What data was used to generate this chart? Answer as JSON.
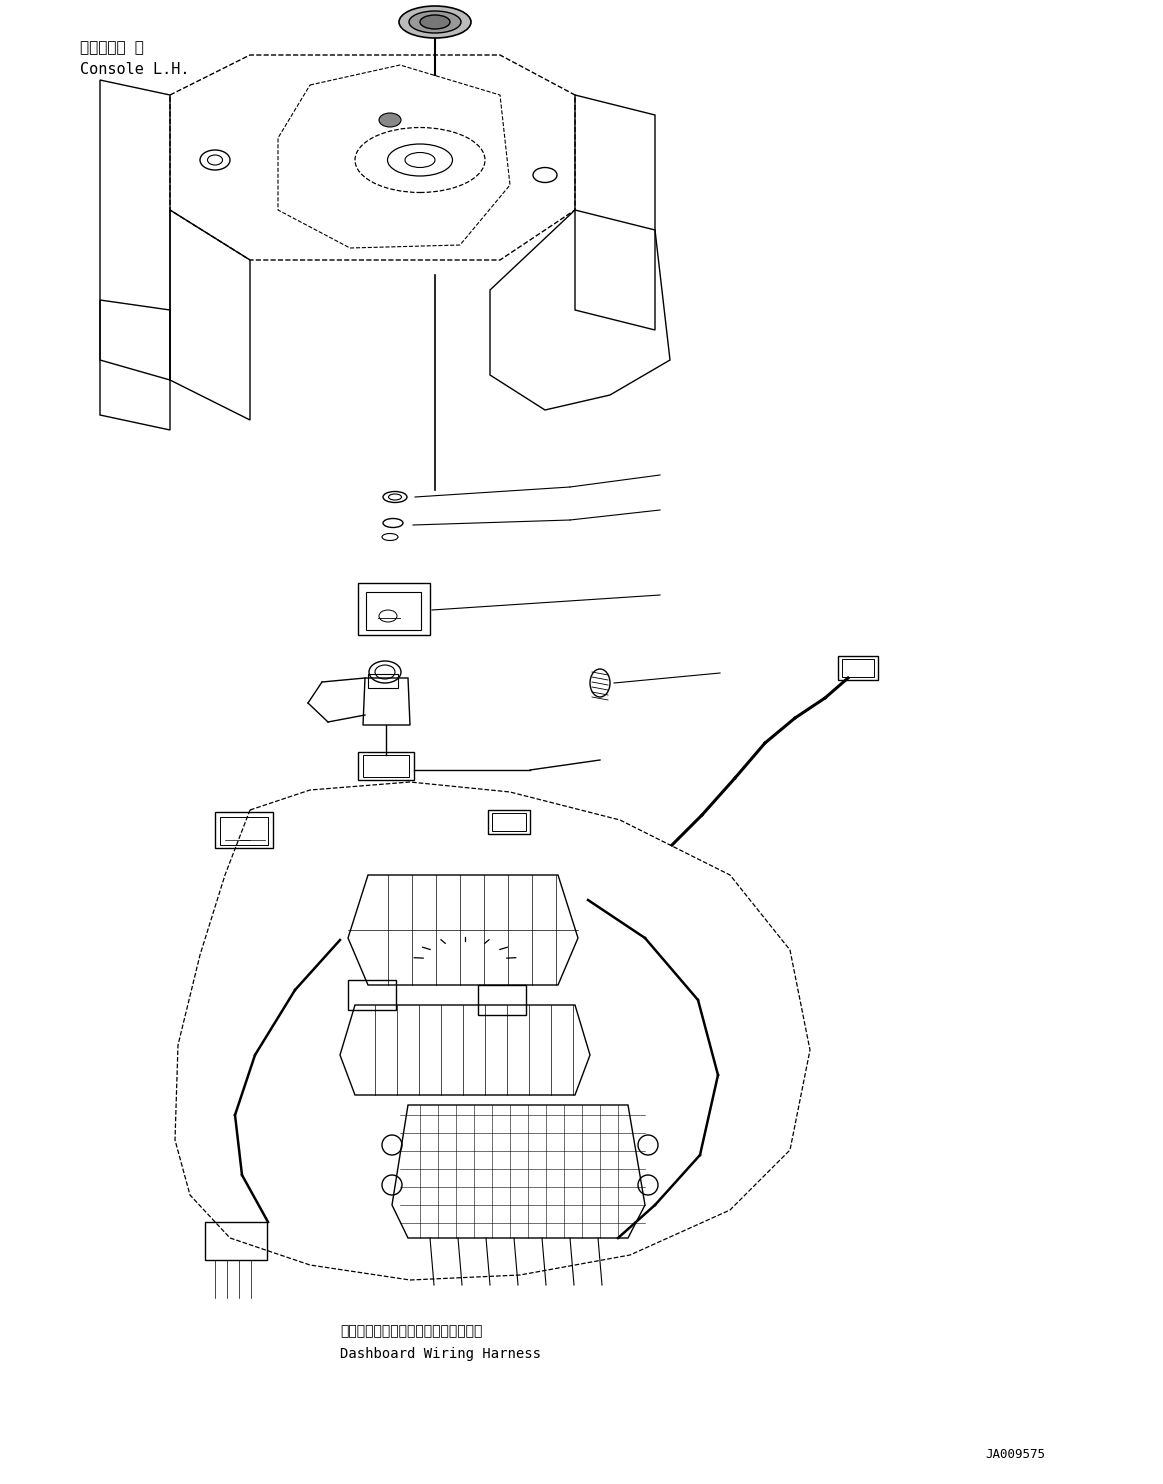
{
  "background_color": "#ffffff",
  "line_color": "#000000",
  "line_width": 1.0,
  "fig_width": 11.63,
  "fig_height": 14.84,
  "dpi": 100,
  "label_console_jp": "コンソール 左",
  "label_console_en": "Console L.H.",
  "label_dashboard_jp": "ダッシュボードワイヤリングハーネス",
  "label_dashboard_en": "Dashboard Wiring Harness",
  "label_code": "JA009575",
  "font_size_label": 10,
  "font_size_code": 8,
  "font_family": "monospace"
}
